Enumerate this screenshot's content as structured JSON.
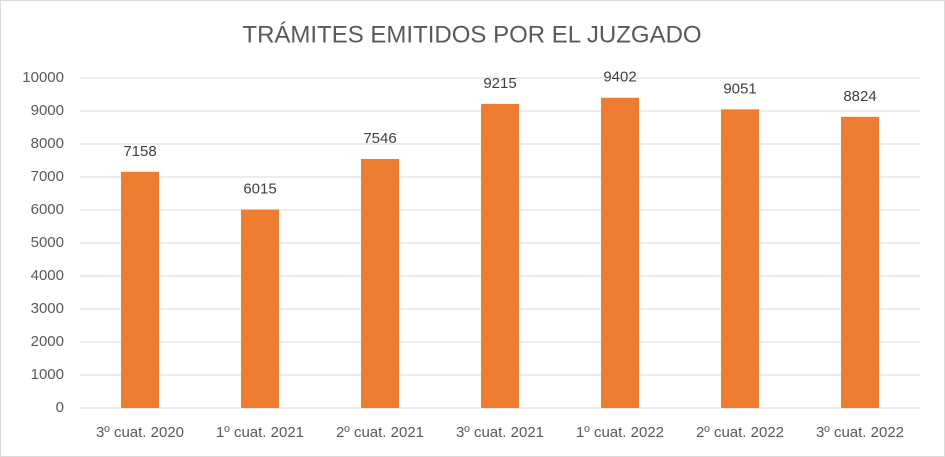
{
  "chart_data": {
    "type": "bar",
    "title": "TRÁMITES EMITIDOS POR EL JUZGADO",
    "categories": [
      "3º cuat. 2020",
      "1º cuat. 2021",
      "2º cuat. 2021",
      "3º cuat. 2021",
      "1º cuat. 2022",
      "2º cuat. 2022",
      "3º cuat. 2022"
    ],
    "values": [
      7158,
      6015,
      7546,
      9215,
      9402,
      9051,
      8824
    ],
    "color": "#ed7d31",
    "ylim": [
      0,
      10000
    ],
    "yticks": [
      0,
      1000,
      2000,
      3000,
      4000,
      5000,
      6000,
      7000,
      8000,
      9000,
      10000
    ],
    "grid": true,
    "data_labels": true
  }
}
